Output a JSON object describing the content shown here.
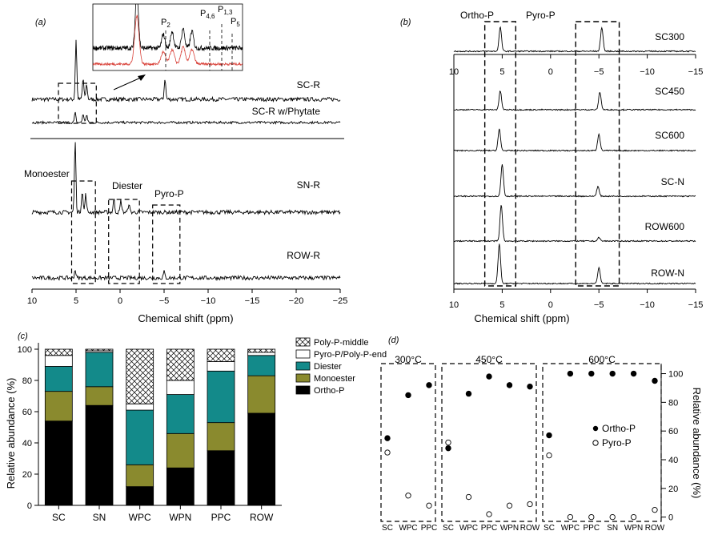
{
  "chart_data": [
    {
      "panel": "(a)",
      "type": "line",
      "xlabel": "Chemical shift (ppm)",
      "xlim": [
        10,
        -25
      ],
      "x_ticks": [
        10,
        5,
        0,
        -5,
        -10,
        -15,
        -20,
        -25
      ],
      "spectra": [
        {
          "name": "SC-R",
          "peaks": [
            [
              5.0,
              1.0
            ],
            [
              4.2,
              0.35
            ],
            [
              3.8,
              0.25
            ],
            [
              -5.1,
              0.35
            ]
          ]
        },
        {
          "name": "SC-R w/Phytate",
          "peaks": [
            [
              5.1,
              0.55
            ],
            [
              4.2,
              0.5
            ],
            [
              3.8,
              0.45
            ]
          ]
        },
        {
          "name": "SN-R",
          "peaks": [
            [
              5.1,
              1.0
            ],
            [
              4.3,
              0.3
            ],
            [
              3.9,
              0.25
            ],
            [
              0.7,
              0.18
            ],
            [
              -0.1,
              0.16
            ],
            [
              -1.0,
              0.12
            ]
          ]
        },
        {
          "name": "ROW-R",
          "peaks": [
            [
              5.1,
              0.35
            ],
            [
              -5.0,
              0.25
            ]
          ]
        }
      ],
      "region_labels": [
        "Monoester",
        "Diester",
        "Pyro-P"
      ],
      "inset": {
        "peak_labels": [
          "P",
          "P",
          "P",
          "P"
        ],
        "peak_label_subs": [
          "2",
          "4,6",
          "1,3",
          "5"
        ]
      }
    },
    {
      "panel": "(b)",
      "type": "line",
      "xlabel": "Chemical shift (ppm)",
      "xlim": [
        10,
        -15
      ],
      "x_ticks": [
        10,
        5,
        0,
        -5,
        -10,
        -15
      ],
      "spectra": [
        {
          "name": "SC300",
          "peaks": [
            [
              5.2,
              1.0
            ],
            [
              -5.3,
              1.0
            ]
          ]
        },
        {
          "name": "SC450",
          "peaks": [
            [
              5.2,
              0.9
            ],
            [
              -5.1,
              0.85
            ]
          ]
        },
        {
          "name": "SC600",
          "peaks": [
            [
              5.3,
              0.95
            ],
            [
              -5.0,
              0.75
            ]
          ]
        },
        {
          "name": "SC-N",
          "peaks": [
            [
              5.0,
              1.0
            ],
            [
              -4.9,
              0.3
            ]
          ]
        },
        {
          "name": "ROW600",
          "peaks": [
            [
              5.1,
              1.0
            ],
            [
              -5.0,
              0.1
            ]
          ]
        },
        {
          "name": "ROW-N",
          "peaks": [
            [
              5.3,
              1.0
            ],
            [
              -5.0,
              0.4
            ]
          ]
        }
      ],
      "region_labels": [
        "Ortho-P",
        "Pyro-P"
      ]
    },
    {
      "panel": "(c)",
      "type": "bar",
      "stacked": true,
      "ylabel": "Relative abundance (%)",
      "ylim": [
        0,
        100
      ],
      "y_ticks": [
        0,
        20,
        40,
        60,
        80,
        100
      ],
      "categories": [
        "SC",
        "SN",
        "WPC",
        "WPN",
        "PPC",
        "ROW"
      ],
      "series": [
        {
          "name": "Ortho-P",
          "values": [
            54,
            64,
            12,
            24,
            35,
            59
          ]
        },
        {
          "name": "Monoester",
          "values": [
            19,
            12,
            14,
            22,
            18,
            24
          ]
        },
        {
          "name": "Diester",
          "values": [
            16,
            22,
            35,
            25,
            33,
            13
          ]
        },
        {
          "name": "Pyro-P/Poly-P-end",
          "values": [
            7,
            1,
            4,
            9,
            6,
            2
          ]
        },
        {
          "name": "Poly-P-middle",
          "values": [
            4,
            1,
            35,
            20,
            8,
            2
          ]
        }
      ],
      "legend": "right"
    },
    {
      "panel": "(d)",
      "type": "scatter",
      "ylabel": "Relative abundance (%)",
      "ylim": [
        -3,
        107
      ],
      "y_ticks": [
        0,
        20,
        40,
        60,
        80,
        100
      ],
      "groups": [
        {
          "label": "300°C",
          "categories": [
            "SC",
            "WPC",
            "PPC"
          ],
          "ortho": [
            55,
            85,
            92
          ],
          "pyro": [
            45,
            15,
            8
          ]
        },
        {
          "label": "450°C",
          "categories": [
            "SC",
            "WPC",
            "PPC",
            "WPN",
            "ROW"
          ],
          "ortho": [
            48,
            86,
            98,
            92,
            91
          ],
          "pyro": [
            52,
            14,
            2,
            8,
            9
          ]
        },
        {
          "label": "600°C",
          "categories": [
            "SC",
            "WPC",
            "PPC",
            "SN",
            "WPN",
            "ROW"
          ],
          "ortho": [
            57,
            100,
            100,
            100,
            100,
            95
          ],
          "pyro": [
            43,
            0,
            0,
            0,
            0,
            5
          ]
        }
      ],
      "series": [
        {
          "name": "Ortho-P"
        },
        {
          "name": "Pyro-P"
        }
      ],
      "legend": "right"
    }
  ]
}
